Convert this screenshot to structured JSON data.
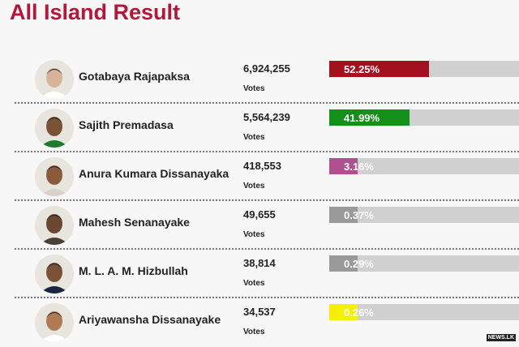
{
  "title": "All Island Result",
  "votes_label": "Votes",
  "watermark": "NEWS.LK",
  "candidates": [
    {
      "name": "Gotabaya Rajapaksa",
      "votes": "6,924,255",
      "percent": "52.25%",
      "value": 52.25,
      "color": "#a3101e",
      "skin": "#d8b39a",
      "shirt": "#ffffff"
    },
    {
      "name": "Sajith Premadasa",
      "votes": "5,564,239",
      "percent": "41.99%",
      "value": 41.99,
      "color": "#13901a",
      "skin": "#7a5238",
      "shirt": "#1f7a2c"
    },
    {
      "name": "Anura Kumara Dissanayaka",
      "votes": "418,553",
      "percent": "3.16%",
      "value": 3.16,
      "color": "#b0508f",
      "skin": "#8a5a3c",
      "shirt": "#d8d2c8"
    },
    {
      "name": "Mahesh Senanayake",
      "votes": "49,655",
      "percent": "0.37%",
      "value": 0.37,
      "color": "#9a9a9a",
      "skin": "#6b4630",
      "shirt": "#4a4038"
    },
    {
      "name": "M. L. A. M. Hizbullah",
      "votes": "38,814",
      "percent": "0.29%",
      "value": 0.29,
      "color": "#9a9a9a",
      "skin": "#7a5238",
      "shirt": "#1c2440"
    },
    {
      "name": "Ariyawansha Dissanayake",
      "votes": "34,537",
      "percent": "0.26%",
      "value": 0.26,
      "color": "#f5ef00",
      "skin": "#b07a55",
      "shirt": "#ffffff"
    }
  ]
}
